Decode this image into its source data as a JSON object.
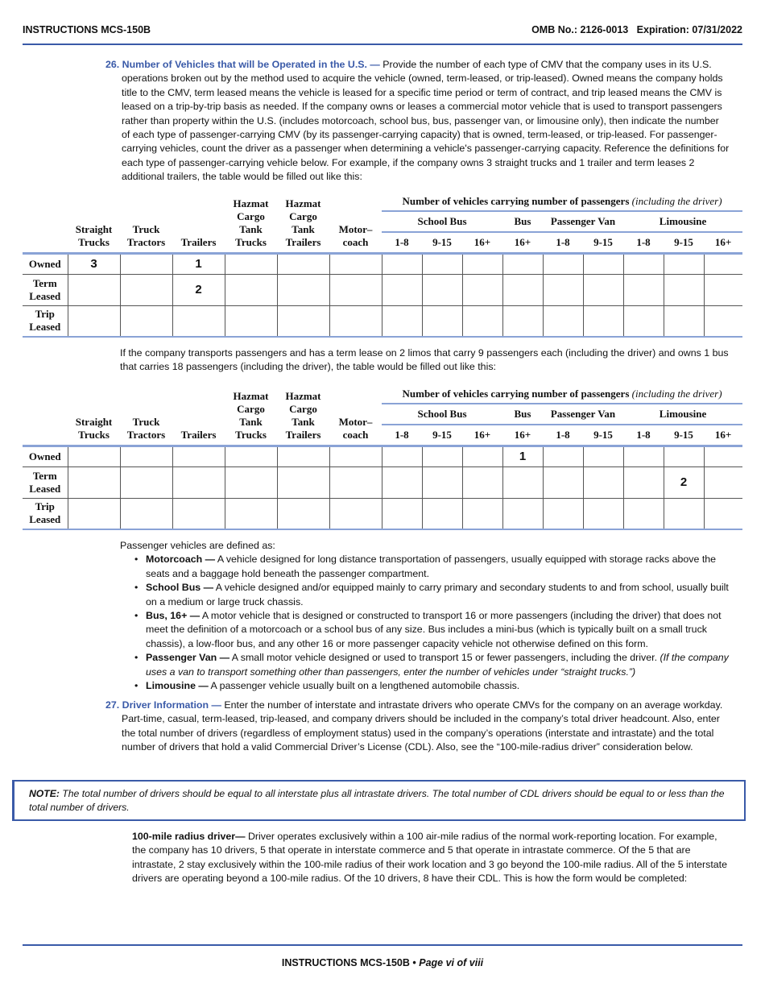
{
  "header": {
    "left": "INSTRUCTIONS MCS-150B",
    "omb": "OMB No.: 2126-0013",
    "expiration": "Expiration: 07/31/2022"
  },
  "item26": {
    "number": "26. Number of Vehicles that will be Operated in the U.S. —",
    "text": " Provide the number of each type of CMV that the company uses in its U.S. operations broken out by the method used to acquire the vehicle (owned, term-leased, or trip-leased). Owned means the company holds title to the CMV, term leased means the vehicle is leased for a specific time period or term of contract, and trip leased means the CMV is leased on a trip-by-trip basis as needed. If the company owns or leases a commercial motor vehicle that is used to transport passengers rather than property within the U.S. (includes motorcoach, school bus, bus, passenger van, or limousine only), then indicate the number of each type of passenger-carrying CMV (by its passenger-carrying capacity) that is owned, term-leased, or trip-leased. For passenger-carrying vehicles, count the driver as a passenger when determining a vehicle's passenger-carrying capacity. Reference the definitions for each type of passenger-carrying vehicle below. For example, if the company owns 3 straight trucks and 1 trailer and term leases 2 additional trailers, the table would be filled out like this:"
  },
  "table_header": {
    "group": "Number of vehicles carrying number of passengers",
    "group_italic": "(including the driver)",
    "cols": [
      "Straight Trucks",
      "Truck Tractors",
      "Trailers",
      "Hazmat Cargo Tank Trucks",
      "Hazmat Cargo Tank Trailers",
      "Motor–coach"
    ],
    "subgroups": [
      "School Bus",
      "Bus",
      "Passenger Van",
      "Limousine"
    ],
    "ranges": [
      "1-8",
      "9-15",
      "16+",
      "16+",
      "1-8",
      "9-15",
      "1-8",
      "9-15",
      "16+"
    ]
  },
  "table1": {
    "rows": [
      {
        "label": "Owned",
        "cells": [
          "3",
          "",
          "1",
          "",
          "",
          "",
          "",
          "",
          "",
          "",
          "",
          "",
          "",
          "",
          ""
        ]
      },
      {
        "label": "Term Leased",
        "cells": [
          "",
          "",
          "2",
          "",
          "",
          "",
          "",
          "",
          "",
          "",
          "",
          "",
          "",
          "",
          ""
        ]
      },
      {
        "label": "Trip Leased",
        "cells": [
          "",
          "",
          "",
          "",
          "",
          "",
          "",
          "",
          "",
          "",
          "",
          "",
          "",
          "",
          ""
        ]
      }
    ]
  },
  "example2": "If the company transports passengers and has a term lease on 2 limos that carry 9 passengers each (including the driver) and owns 1 bus that carries 18 passengers (including the driver), the table would be filled out like this:",
  "table2": {
    "rows": [
      {
        "label": "Owned",
        "cells": [
          "",
          "",
          "",
          "",
          "",
          "",
          "",
          "",
          "",
          "1",
          "",
          "",
          "",
          "",
          ""
        ]
      },
      {
        "label": "Term Leased",
        "cells": [
          "",
          "",
          "",
          "",
          "",
          "",
          "",
          "",
          "",
          "",
          "",
          "",
          "",
          "2",
          ""
        ]
      },
      {
        "label": "Trip Leased",
        "cells": [
          "",
          "",
          "",
          "",
          "",
          "",
          "",
          "",
          "",
          "",
          "",
          "",
          "",
          "",
          ""
        ]
      }
    ]
  },
  "definitions": {
    "intro": "Passenger vehicles are defined as:",
    "items": [
      {
        "term": "Motorcoach —",
        "text": " A vehicle designed for long distance transportation of passengers, usually equipped with storage racks above the seats and a baggage hold beneath the passenger compartment.",
        "italic": ""
      },
      {
        "term": "School Bus —",
        "text": " A vehicle designed and/or equipped mainly to carry primary and secondary students to and from school, usually built on a medium or large truck chassis.",
        "italic": ""
      },
      {
        "term": "Bus, 16+ —",
        "text": " A motor vehicle that is designed or constructed to transport 16 or more passengers (including the driver) that does not meet the definition of a motorcoach or a school bus of any size. Bus includes a mini-bus (which is typically built on a small truck chassis), a low-floor bus, and any other 16 or more passenger capacity vehicle not otherwise defined on this form.",
        "italic": ""
      },
      {
        "term": "Passenger Van —",
        "text": " A small motor vehicle designed or used to transport 15 or fewer passengers, including the driver. ",
        "italic": "(If the company uses a van to transport something other than passengers, enter the number of vehicles under “straight trucks.”)"
      },
      {
        "term": "Limousine —",
        "text": " A passenger vehicle usually built on a lengthened automobile chassis.",
        "italic": ""
      }
    ]
  },
  "item27": {
    "number": "27. Driver Information —",
    "text": " Enter the number of interstate and intrastate drivers who operate CMVs for the company on an average workday. Part-time, casual, term-leased, trip-leased, and company drivers should be included in the company’s total driver headcount. Also, enter the total number of drivers (regardless of employment status) used in the company’s operations (interstate and intrastate) and the total number of drivers that hold a valid Commercial Driver’s License (CDL). Also, see the “100-mile-radius driver” consideration below."
  },
  "note": {
    "label": "NOTE:",
    "text": " The total number of drivers should be equal to all interstate plus all intrastate drivers. The total number of CDL drivers should be equal to or less than the total number of drivers."
  },
  "radius": {
    "term": "100-mile radius driver—",
    "text": " Driver operates exclusively within a 100 air-mile radius of the normal work-reporting location. For example, the company has 10 drivers, 5 that operate in interstate commerce and 5 that operate in intrastate commerce. Of the 5 that are intrastate, 2 stay exclusively within the 100-mile radius of their work location and 3 go beyond the 100-mile radius. All of the 5 interstate drivers are operating beyond a 100-mile radius. Of the 10 drivers, 8 have their CDL. This is how the form would be completed:"
  },
  "footer": {
    "doc": "INSTRUCTIONS MCS-150B •",
    "page": "Page vi of viii"
  },
  "colors": {
    "accent": "#3a5aa8"
  }
}
